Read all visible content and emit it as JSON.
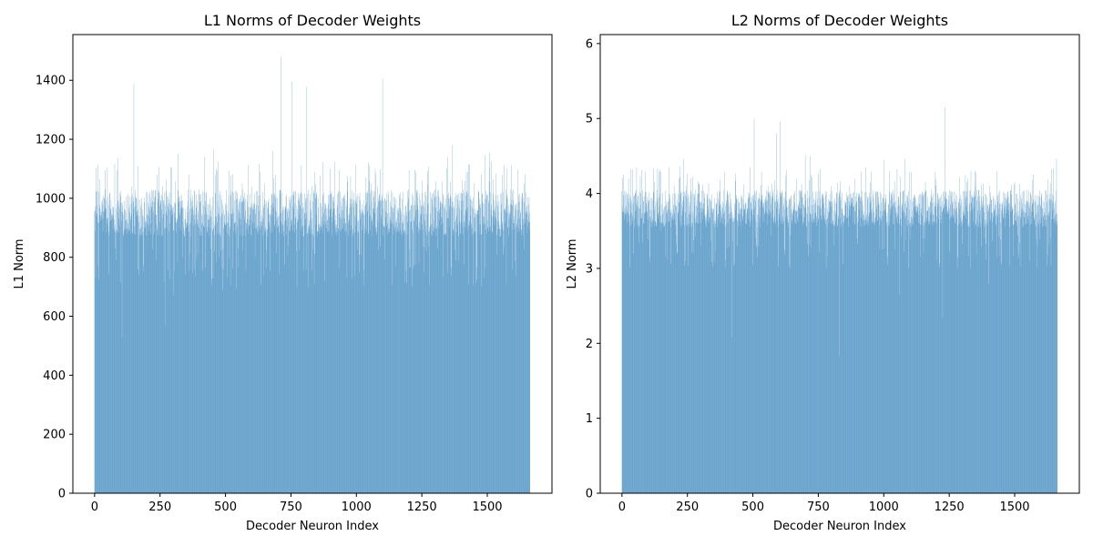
{
  "chart_data": [
    {
      "type": "bar",
      "title": "L1 Norms of Decoder Weights",
      "xlabel": "Decoder Neuron Index",
      "ylabel": "L1 Norm",
      "bar_color": "#1f77b4",
      "n_bars": 1664,
      "xlim": [
        -83,
        1747
      ],
      "ylim": [
        0,
        1555
      ],
      "xticks": [
        0,
        250,
        500,
        750,
        1000,
        1250,
        1500
      ],
      "yticks": [
        0,
        200,
        400,
        600,
        800,
        1000,
        1200,
        1400
      ],
      "grid": false,
      "legend": "none",
      "typical_range": [
        870,
        1030
      ],
      "sampled_values": [
        [
          0,
          955
        ],
        [
          20,
          1065
        ],
        [
          40,
          1030
        ],
        [
          60,
          960
        ],
        [
          80,
          830
        ],
        [
          90,
          1135
        ],
        [
          100,
          715
        ],
        [
          105,
          528
        ],
        [
          120,
          1005
        ],
        [
          140,
          1040
        ],
        [
          150,
          1388
        ],
        [
          165,
          1110
        ],
        [
          180,
          1000
        ],
        [
          200,
          1020
        ],
        [
          220,
          990
        ],
        [
          240,
          1080
        ],
        [
          260,
          1040
        ],
        [
          270,
          570
        ],
        [
          290,
          1105
        ],
        [
          300,
          670
        ],
        [
          320,
          1150
        ],
        [
          340,
          880
        ],
        [
          360,
          1080
        ],
        [
          380,
          760
        ],
        [
          400,
          1030
        ],
        [
          420,
          1140
        ],
        [
          440,
          900
        ],
        [
          455,
          1165
        ],
        [
          475,
          800
        ],
        [
          490,
          690
        ],
        [
          520,
          1010
        ],
        [
          550,
          980
        ],
        [
          600,
          1040
        ],
        [
          650,
          1050
        ],
        [
          680,
          1160
        ],
        [
          700,
          940
        ],
        [
          712,
          1480
        ],
        [
          740,
          840
        ],
        [
          755,
          1395
        ],
        [
          770,
          820
        ],
        [
          790,
          1110
        ],
        [
          808,
          1378
        ],
        [
          830,
          1040
        ],
        [
          850,
          890
        ],
        [
          880,
          720
        ],
        [
          900,
          1100
        ],
        [
          950,
          1000
        ],
        [
          1000,
          980
        ],
        [
          1050,
          1110
        ],
        [
          1080,
          1040
        ],
        [
          1100,
          1405
        ],
        [
          1150,
          770
        ],
        [
          1200,
          1030
        ],
        [
          1250,
          1060
        ],
        [
          1300,
          1030
        ],
        [
          1350,
          1140
        ],
        [
          1365,
          1180
        ],
        [
          1400,
          1020
        ],
        [
          1430,
          710
        ],
        [
          1450,
          1050
        ],
        [
          1490,
          1145
        ],
        [
          1510,
          1155
        ],
        [
          1550,
          870
        ],
        [
          1600,
          1030
        ],
        [
          1640,
          1050
        ],
        [
          1663,
          920
        ]
      ]
    },
    {
      "type": "bar",
      "title": "L2 Norms of Decoder Weights",
      "xlabel": "Decoder Neuron Index",
      "ylabel": "L2 Norm",
      "bar_color": "#1f77b4",
      "n_bars": 1664,
      "xlim": [
        -83,
        1747
      ],
      "ylim": [
        0,
        6.12
      ],
      "xticks": [
        0,
        250,
        500,
        750,
        1000,
        1250,
        1500
      ],
      "yticks": [
        0,
        1,
        2,
        3,
        4,
        5,
        6
      ],
      "grid": false,
      "legend": "none",
      "typical_range": [
        3.55,
        4.05
      ],
      "sampled_values": [
        [
          0,
          4.03
        ],
        [
          40,
          4.32
        ],
        [
          80,
          3.95
        ],
        [
          120,
          4.34
        ],
        [
          150,
          3.5
        ],
        [
          180,
          4.35
        ],
        [
          220,
          4.36
        ],
        [
          235,
          4.46
        ],
        [
          300,
          3.3
        ],
        [
          350,
          3.8
        ],
        [
          375,
          4.18
        ],
        [
          420,
          2.08
        ],
        [
          440,
          3.3
        ],
        [
          490,
          4.35
        ],
        [
          505,
          4.99
        ],
        [
          520,
          3.3
        ],
        [
          560,
          4.1
        ],
        [
          590,
          4.8
        ],
        [
          605,
          4.96
        ],
        [
          640,
          3.05
        ],
        [
          700,
          4.51
        ],
        [
          720,
          4.5
        ],
        [
          750,
          4.27
        ],
        [
          800,
          4.1
        ],
        [
          830,
          1.83
        ],
        [
          870,
          4.1
        ],
        [
          930,
          4.35
        ],
        [
          1000,
          4.45
        ],
        [
          1060,
          2.65
        ],
        [
          1080,
          4.46
        ],
        [
          1150,
          3.4
        ],
        [
          1200,
          4.1
        ],
        [
          1225,
          2.35
        ],
        [
          1235,
          5.15
        ],
        [
          1290,
          4.22
        ],
        [
          1350,
          4.1
        ],
        [
          1400,
          2.8
        ],
        [
          1450,
          3.05
        ],
        [
          1500,
          4.15
        ],
        [
          1550,
          3.9
        ],
        [
          1600,
          3.6
        ],
        [
          1650,
          3.8
        ],
        [
          1660,
          4.46
        ]
      ]
    }
  ]
}
